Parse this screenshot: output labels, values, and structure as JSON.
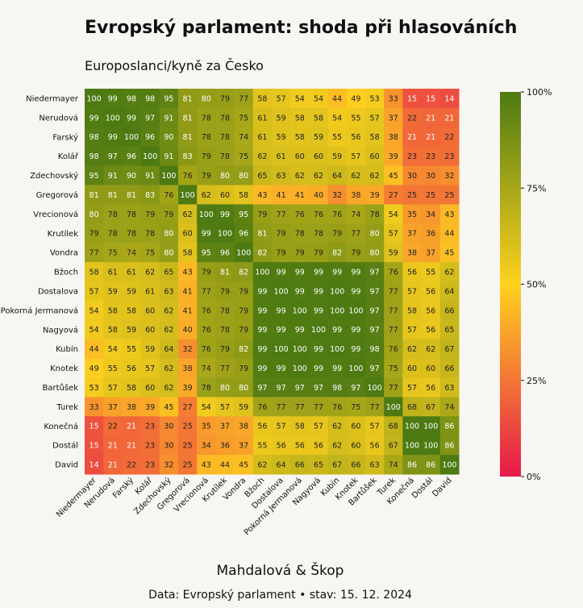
{
  "title": "Evropský parlament: shoda při hlasováních",
  "subtitle": "Europoslanci/kyně za Česko",
  "footer": {
    "author": "Mahdalová & Škop",
    "source": "Data: Evropský parlament • stav: 15. 12. 2024"
  },
  "colors": {
    "low": "#e6194b",
    "mid": "#ffd21f",
    "high": "#4d7a12",
    "background": "#f8f6f2"
  },
  "chart_data": {
    "type": "heatmap",
    "title": "Evropský parlament: shoda při hlasováních",
    "subtitle": "Europoslanci/kyně za Česko",
    "x_labels": [
      "Niedermayer",
      "Nerudová",
      "Farský",
      "Kolář",
      "Zdechovský",
      "Gregorová",
      "Vrecionová",
      "Krutílek",
      "Vondra",
      "Bžoch",
      "Dostalova",
      "Pokorná Jermanová",
      "Nagyová",
      "Kubín",
      "Knotek",
      "Bartůšek",
      "Turek",
      "Konečná",
      "Dostál",
      "David"
    ],
    "y_labels": [
      "Niedermayer",
      "Nerudová",
      "Farský",
      "Kolář",
      "Zdechovský",
      "Gregorová",
      "Vrecionová",
      "Krutílek",
      "Vondra",
      "Bžoch",
      "Dostalova",
      "Pokorná Jermanová",
      "Nagyová",
      "Kubín",
      "Knotek",
      "Bartůšek",
      "Turek",
      "Konečná",
      "Dostál",
      "David"
    ],
    "values": [
      [
        100,
        99,
        98,
        98,
        95,
        81,
        80,
        79,
        77,
        58,
        57,
        54,
        54,
        44,
        49,
        53,
        33,
        15,
        15,
        14
      ],
      [
        99,
        100,
        99,
        97,
        91,
        81,
        78,
        78,
        75,
        61,
        59,
        58,
        58,
        54,
        55,
        57,
        37,
        22,
        21,
        21
      ],
      [
        98,
        99,
        100,
        96,
        90,
        81,
        78,
        78,
        74,
        61,
        59,
        58,
        59,
        55,
        56,
        58,
        38,
        21,
        21,
        22
      ],
      [
        98,
        97,
        96,
        100,
        91,
        83,
        79,
        78,
        75,
        62,
        61,
        60,
        60,
        59,
        57,
        60,
        39,
        23,
        23,
        23
      ],
      [
        95,
        91,
        90,
        91,
        100,
        76,
        79,
        80,
        80,
        65,
        63,
        62,
        62,
        64,
        62,
        62,
        45,
        30,
        30,
        32
      ],
      [
        81,
        81,
        81,
        83,
        76,
        100,
        62,
        60,
        58,
        43,
        41,
        41,
        40,
        32,
        38,
        39,
        27,
        25,
        25,
        25
      ],
      [
        80,
        78,
        78,
        79,
        79,
        62,
        100,
        99,
        95,
        79,
        77,
        76,
        76,
        76,
        74,
        78,
        54,
        35,
        34,
        43
      ],
      [
        79,
        78,
        78,
        78,
        80,
        60,
        99,
        100,
        96,
        81,
        79,
        78,
        78,
        79,
        77,
        80,
        57,
        37,
        36,
        44
      ],
      [
        77,
        75,
        74,
        75,
        80,
        58,
        95,
        96,
        100,
        82,
        79,
        79,
        79,
        82,
        79,
        80,
        59,
        38,
        37,
        45
      ],
      [
        58,
        61,
        61,
        62,
        65,
        43,
        79,
        81,
        82,
        100,
        99,
        99,
        99,
        99,
        99,
        97,
        76,
        56,
        55,
        62
      ],
      [
        57,
        59,
        59,
        61,
        63,
        41,
        77,
        79,
        79,
        99,
        100,
        99,
        99,
        100,
        99,
        97,
        77,
        57,
        56,
        64
      ],
      [
        54,
        58,
        58,
        60,
        62,
        41,
        76,
        78,
        79,
        99,
        99,
        100,
        99,
        100,
        100,
        97,
        77,
        58,
        56,
        66
      ],
      [
        54,
        58,
        59,
        60,
        62,
        40,
        76,
        78,
        79,
        99,
        99,
        99,
        100,
        99,
        99,
        97,
        77,
        57,
        56,
        65
      ],
      [
        44,
        54,
        55,
        59,
        64,
        32,
        76,
        79,
        82,
        99,
        100,
        100,
        99,
        100,
        99,
        98,
        76,
        62,
        62,
        67
      ],
      [
        49,
        55,
        56,
        57,
        62,
        38,
        74,
        77,
        79,
        99,
        99,
        100,
        99,
        99,
        100,
        97,
        75,
        60,
        60,
        66
      ],
      [
        53,
        57,
        58,
        60,
        62,
        39,
        78,
        80,
        80,
        97,
        97,
        97,
        97,
        98,
        97,
        100,
        77,
        57,
        56,
        63
      ],
      [
        33,
        37,
        38,
        39,
        45,
        27,
        54,
        57,
        59,
        76,
        77,
        77,
        77,
        76,
        75,
        77,
        100,
        68,
        67,
        74
      ],
      [
        15,
        22,
        21,
        23,
        30,
        25,
        35,
        37,
        38,
        56,
        57,
        58,
        57,
        62,
        60,
        57,
        68,
        100,
        100,
        86
      ],
      [
        15,
        21,
        21,
        23,
        30,
        25,
        34,
        36,
        37,
        55,
        56,
        56,
        56,
        62,
        60,
        56,
        67,
        100,
        100,
        86
      ],
      [
        14,
        21,
        22,
        23,
        32,
        25,
        43,
        44,
        45,
        62,
        64,
        66,
        65,
        67,
        66,
        63,
        74,
        86,
        86,
        100
      ]
    ],
    "value_range": [
      0,
      100
    ],
    "colorbar_ticks": [
      "0%",
      "25%",
      "50%",
      "75%",
      "100%"
    ],
    "colorbar_values": [
      0,
      25,
      50,
      75,
      100
    ]
  }
}
